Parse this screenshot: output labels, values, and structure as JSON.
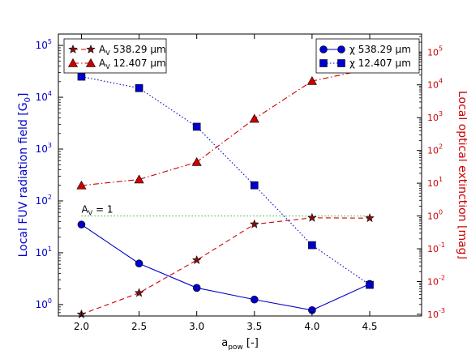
{
  "chart_data": {
    "type": "line",
    "x": [
      2.0,
      2.5,
      3.0,
      3.5,
      4.0,
      4.5
    ],
    "xlim": [
      1.8,
      4.95
    ],
    "x_ticks": [
      "2.0",
      "2.5",
      "3.0",
      "3.5",
      "4.0",
      "4.5"
    ],
    "xlabel_main": "a",
    "xlabel_sub": "pow",
    "xlabel_suffix": " [-]",
    "left_axis": {
      "label": "Local FUV radiation field [G",
      "label_sub": "0",
      "label_close": "]",
      "scale": "log",
      "log_range": [
        -0.22,
        5.22
      ],
      "ticks": [
        {
          "base": "10",
          "exp": "0",
          "log": 0
        },
        {
          "base": "10",
          "exp": "1",
          "log": 1
        },
        {
          "base": "10",
          "exp": "2",
          "log": 2
        },
        {
          "base": "10",
          "exp": "3",
          "log": 3
        },
        {
          "base": "10",
          "exp": "4",
          "log": 4
        },
        {
          "base": "10",
          "exp": "5",
          "log": 5
        }
      ],
      "color": "#0000cc"
    },
    "right_axis": {
      "label": "Local optical extinction [mag]",
      "scale": "log",
      "log_range": [
        -3.05,
        5.55
      ],
      "ticks": [
        {
          "base": "10",
          "exp": "-3",
          "log": -3
        },
        {
          "base": "10",
          "exp": "-2",
          "log": -2
        },
        {
          "base": "10",
          "exp": "-1",
          "log": -1
        },
        {
          "base": "10",
          "exp": "0",
          "log": 0
        },
        {
          "base": "10",
          "exp": "1",
          "log": 1
        },
        {
          "base": "10",
          "exp": "2",
          "log": 2
        },
        {
          "base": "10",
          "exp": "3",
          "log": 3
        },
        {
          "base": "10",
          "exp": "4",
          "log": 4
        },
        {
          "base": "10",
          "exp": "5",
          "log": 5
        }
      ],
      "color": "#cc0000"
    },
    "series": [
      {
        "name_main": "χ",
        "name_rest": " 538.29 μm",
        "axis": "left",
        "values": [
          35,
          6.2,
          2.1,
          1.25,
          0.78,
          2.5
        ],
        "color": "#0000cc",
        "marker": "circle",
        "line": "solid"
      },
      {
        "name_main": "χ",
        "name_rest": " 12.407 μm",
        "axis": "left",
        "values": [
          25000,
          15000,
          2700,
          200,
          14,
          2.4
        ],
        "color": "#0000cc",
        "marker": "square",
        "line": "dotted"
      },
      {
        "name_main": "A",
        "name_sub": "V",
        "name_rest": " 538.29 μm",
        "axis": "right",
        "values": [
          0.001,
          0.0045,
          0.045,
          0.56,
          0.88,
          0.86
        ],
        "color": "#cc0000",
        "marker": "star",
        "line": "dashed"
      },
      {
        "name_main": "A",
        "name_sub": "V",
        "name_rest": " 12.407 μm",
        "axis": "right",
        "values": [
          8.5,
          13,
          44,
          920,
          13000,
          31000
        ],
        "color": "#cc0000",
        "marker": "triangle",
        "line": "dashdot"
      }
    ],
    "reference_line": {
      "axis": "right",
      "value": 1,
      "color": "#33aa33",
      "label_main": "A",
      "label_sub": "V",
      "label_rest": " = 1"
    },
    "grid": false,
    "legends": [
      "top-left",
      "top-right"
    ]
  }
}
